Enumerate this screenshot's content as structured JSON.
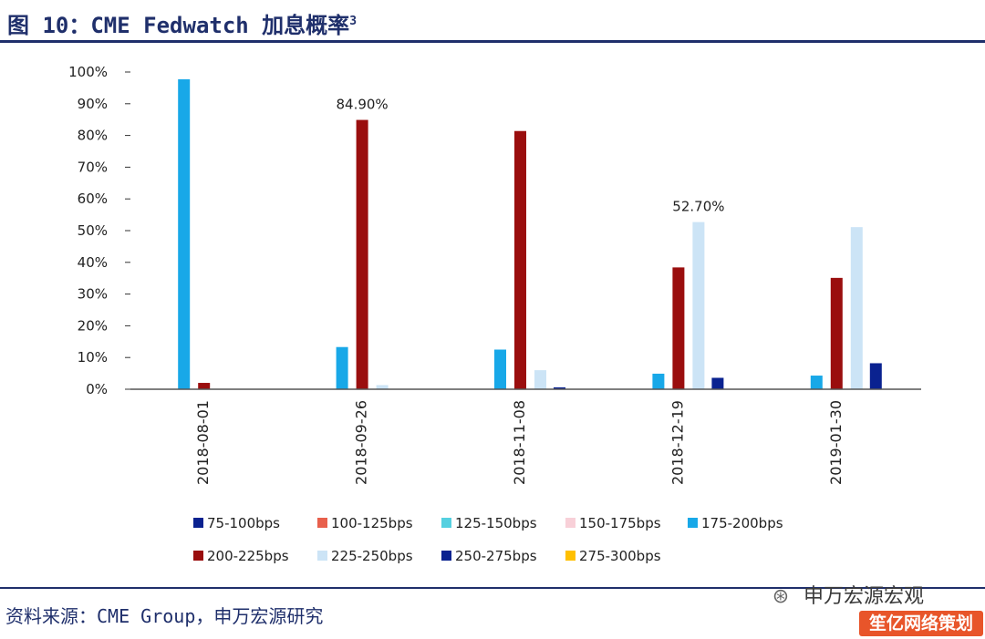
{
  "header": {
    "title": "图 10：CME Fedwatch 加息概率",
    "title_sup": "3"
  },
  "footer": {
    "source": "资料来源：CME Group，申万宏源研究",
    "watermark_text": "申万宏源宏观",
    "watermark_icon": "wechat-icon",
    "badge_text": "笙亿网络策划"
  },
  "chart_data": {
    "type": "bar",
    "categories": [
      "2018-08-01",
      "2018-09-26",
      "2018-11-08",
      "2018-12-19",
      "2019-01-30"
    ],
    "ylim": [
      0,
      100
    ],
    "yticks": [
      "0%",
      "10%",
      "20%",
      "30%",
      "40%",
      "50%",
      "60%",
      "70%",
      "80%",
      "90%",
      "100%"
    ],
    "grid": false,
    "legend_position": "bottom",
    "series": [
      {
        "name": "75-100bps",
        "color": "#0a2290",
        "values": [
          0,
          0,
          0,
          0,
          0
        ]
      },
      {
        "name": "100-125bps",
        "color": "#e8604c",
        "values": [
          0,
          0,
          0,
          0,
          0
        ]
      },
      {
        "name": "125-150bps",
        "color": "#55d0e0",
        "values": [
          0,
          0,
          0,
          0,
          0
        ]
      },
      {
        "name": "150-175bps",
        "color": "#f8d0d8",
        "values": [
          0,
          0,
          0,
          0,
          0
        ]
      },
      {
        "name": "175-200bps",
        "color": "#18a8e8",
        "values": [
          97.7,
          13.3,
          12.5,
          4.9,
          4.3
        ]
      },
      {
        "name": "200-225bps",
        "color": "#9a0e0e",
        "values": [
          2.0,
          84.9,
          81.4,
          38.4,
          35.1
        ]
      },
      {
        "name": "225-250bps",
        "color": "#cce4f6",
        "values": [
          0,
          1.3,
          6.0,
          52.7,
          51.1
        ]
      },
      {
        "name": "250-275bps",
        "color": "#0a2290",
        "values": [
          0,
          0,
          0.6,
          3.6,
          8.2
        ]
      },
      {
        "name": "275-300bps",
        "color": "#ffc000",
        "values": [
          0,
          0,
          0,
          0,
          0
        ]
      }
    ],
    "annotations": [
      {
        "text": "84.90%",
        "category": "2018-09-26",
        "series": "200-225bps"
      },
      {
        "text": "52.70%",
        "category": "2018-12-19",
        "series": "225-250bps"
      }
    ]
  }
}
